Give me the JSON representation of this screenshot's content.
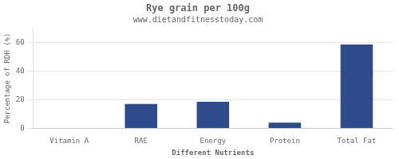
{
  "chart_data": {
    "type": "bar",
    "title": "Rye grain per 100g",
    "subtitle": "www.dietandfitnesstoday.com",
    "xlabel": "Different Nutrients",
    "ylabel": "Percentage of RDH (%)",
    "categories": [
      "Vitamin A",
      "RAE",
      "Energy",
      "Protein",
      "Total Fat"
    ],
    "values": [
      0.0,
      17.0,
      18.5,
      4.0,
      58.5
    ],
    "color": "#2e4b8c",
    "ylim": [
      0,
      70
    ],
    "yticks": [
      0,
      20,
      40,
      60
    ],
    "grid": true
  }
}
